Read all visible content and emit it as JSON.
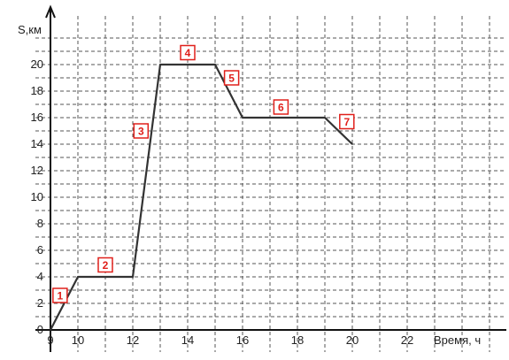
{
  "chart_data": {
    "type": "line",
    "ylabel": "S,км",
    "xlabel": "Время, ч",
    "xlim": [
      9,
      23
    ],
    "ylim": [
      0,
      22
    ],
    "grid": true,
    "x_ticks": [
      9,
      10,
      12,
      14,
      16,
      18,
      20,
      22
    ],
    "y_ticks": [
      0,
      2,
      4,
      6,
      8,
      10,
      12,
      14,
      16,
      18,
      20
    ],
    "series": [
      {
        "color": "#333333",
        "points": [
          {
            "x": 9,
            "y": 0
          },
          {
            "x": 10,
            "y": 4
          },
          {
            "x": 12,
            "y": 4
          },
          {
            "x": 13,
            "y": 20
          },
          {
            "x": 15,
            "y": 20
          },
          {
            "x": 16,
            "y": 16
          },
          {
            "x": 19,
            "y": 16
          },
          {
            "x": 20,
            "y": 14
          }
        ]
      }
    ],
    "segment_labels": [
      {
        "text": "1",
        "x": 9.35,
        "y": 2.6
      },
      {
        "text": "2",
        "x": 11.0,
        "y": 4.9
      },
      {
        "text": "3",
        "x": 12.3,
        "y": 15.0
      },
      {
        "text": "4",
        "x": 14.0,
        "y": 20.9
      },
      {
        "text": "5",
        "x": 15.6,
        "y": 19.0
      },
      {
        "text": "6",
        "x": 17.4,
        "y": 16.8
      },
      {
        "text": "7",
        "x": 19.8,
        "y": 15.7
      }
    ],
    "label_color": "#e0201b"
  }
}
